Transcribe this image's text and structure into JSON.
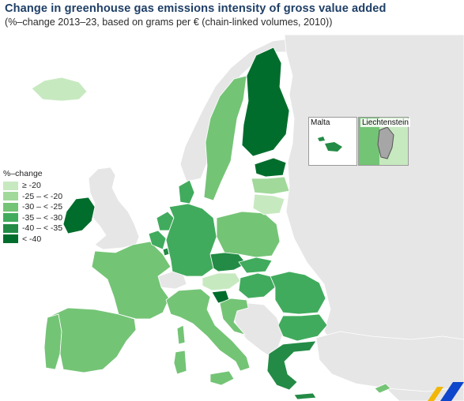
{
  "title": "Change in greenhouse gas emissions intensity of gross value added",
  "subtitle": "(%–change 2013–23, based on grams per € (chain-linked volumes, 2010))",
  "legend": {
    "title": "%–change",
    "items": [
      {
        "label": "≥ -20",
        "color": "#c7e9c0"
      },
      {
        "label": "-25 – < -20",
        "color": "#a1d99b"
      },
      {
        "label": "-30 – < -25",
        "color": "#74c476"
      },
      {
        "label": "-35 – < -30",
        "color": "#41ab5d"
      },
      {
        "label": "-40 – < -35",
        "color": "#238b45"
      },
      {
        "label": "< -40",
        "color": "#006d2c"
      }
    ]
  },
  "insets": {
    "malta": "Malta",
    "liechtenstein": "Liechtenstein"
  },
  "colors": {
    "sea": "#ffffff",
    "non_eu_land": "#e6e6e6",
    "no_data": "#d0d0d0",
    "border": "#ffffff",
    "title": "#1f3f66"
  }
}
